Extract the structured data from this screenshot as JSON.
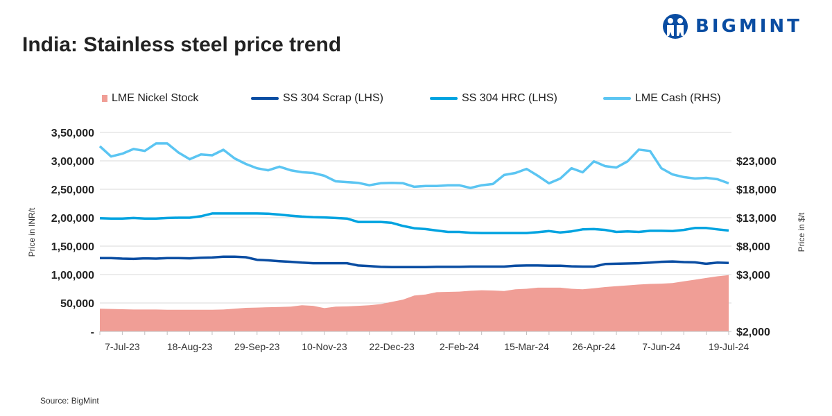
{
  "title": "India: Stainless steel price trend",
  "logo": {
    "text": "BIGMINT",
    "icon": "bigmint-people-icon"
  },
  "source": "Source: BigMint",
  "colors": {
    "nickel": "#f09e96",
    "scrap": "#0a4da2",
    "hrc": "#00a3e0",
    "cash": "#5bc5f2",
    "grid": "#d9d9d9"
  },
  "chart_data": {
    "type": "line",
    "title": "India: Stainless steel price trend",
    "ylabel": "Price in INR/t",
    "y2label": "Price in $/t",
    "ylim": [
      0,
      350000
    ],
    "y2lim": [
      -2250,
      23000
    ],
    "grid": true,
    "legend_position": "top",
    "yticks": [
      "-",
      "50,000",
      "1,00,000",
      "1,50,000",
      "2,00,000",
      "2,50,000",
      "3,00,000",
      "3,50,000"
    ],
    "y2ticks": [
      "$2,000",
      "$3,000",
      "$8,000",
      "$13,000",
      "$18,000",
      "$23,000"
    ],
    "xtick_labels": [
      "7-Jul-23",
      "18-Aug-23",
      "29-Sep-23",
      "10-Nov-23",
      "22-Dec-23",
      "2-Feb-24",
      "15-Mar-24",
      "26-Apr-24",
      "7-Jun-24",
      "19-Jul-24"
    ],
    "x": [
      "23-Jun-23",
      "30-Jun-23",
      "7-Jul-23",
      "14-Jul-23",
      "21-Jul-23",
      "28-Jul-23",
      "4-Aug-23",
      "11-Aug-23",
      "18-Aug-23",
      "25-Aug-23",
      "1-Sep-23",
      "8-Sep-23",
      "15-Sep-23",
      "22-Sep-23",
      "29-Sep-23",
      "6-Oct-23",
      "13-Oct-23",
      "20-Oct-23",
      "27-Oct-23",
      "3-Nov-23",
      "10-Nov-23",
      "17-Nov-23",
      "24-Nov-23",
      "1-Dec-23",
      "8-Dec-23",
      "15-Dec-23",
      "22-Dec-23",
      "29-Dec-23",
      "5-Jan-24",
      "12-Jan-24",
      "19-Jan-24",
      "26-Jan-24",
      "2-Feb-24",
      "9-Feb-24",
      "16-Feb-24",
      "23-Feb-24",
      "1-Mar-24",
      "8-Mar-24",
      "15-Mar-24",
      "22-Mar-24",
      "29-Mar-24",
      "5-Apr-24",
      "12-Apr-24",
      "19-Apr-24",
      "26-Apr-24",
      "3-May-24",
      "10-May-24",
      "17-May-24",
      "24-May-24",
      "31-May-24",
      "7-Jun-24",
      "14-Jun-24",
      "21-Jun-24",
      "28-Jun-24",
      "5-Jul-24",
      "12-Jul-24",
      "19-Jul-24"
    ],
    "series": [
      {
        "name": "LME Nickel Stock",
        "type": "area",
        "axis": "left",
        "values": [
          40000,
          39500,
          39000,
          38500,
          38500,
          38500,
          38000,
          38000,
          38000,
          38000,
          38000,
          38500,
          40000,
          41500,
          42000,
          42500,
          43000,
          43500,
          46000,
          45000,
          41000,
          43500,
          44000,
          45000,
          46000,
          48000,
          52000,
          56000,
          63000,
          65000,
          69000,
          69500,
          70000,
          71500,
          72500,
          72000,
          71000,
          74000,
          75000,
          77000,
          77000,
          77000,
          75000,
          74000,
          76000,
          78000,
          79500,
          81000,
          82500,
          83500,
          84000,
          85000,
          88000,
          91000,
          94000,
          97000,
          99000
        ]
      },
      {
        "name": "SS 304 Scrap (LHS)",
        "type": "line",
        "axis": "left",
        "values": [
          129000,
          129000,
          128000,
          127500,
          128500,
          128000,
          129000,
          129000,
          128500,
          129500,
          130000,
          131500,
          131500,
          130500,
          126000,
          125000,
          123500,
          122500,
          121000,
          120000,
          120000,
          120000,
          120000,
          116000,
          115000,
          113500,
          113000,
          113000,
          113000,
          113000,
          113500,
          113500,
          113500,
          114000,
          114000,
          114000,
          114000,
          115500,
          116000,
          116000,
          115500,
          115500,
          114500,
          114000,
          114000,
          118500,
          119000,
          119500,
          120000,
          121000,
          122500,
          123000,
          122000,
          121500,
          119000,
          121000,
          120500
        ]
      },
      {
        "name": "SS 304 HRC (LHS)",
        "type": "line",
        "axis": "left",
        "values": [
          199000,
          198500,
          198500,
          199500,
          198500,
          198500,
          199500,
          200000,
          200000,
          202500,
          207500,
          207500,
          207500,
          207500,
          207500,
          207000,
          205500,
          203500,
          202000,
          201000,
          200500,
          199500,
          198500,
          192500,
          192500,
          192500,
          191000,
          185500,
          181500,
          180000,
          177500,
          175000,
          175000,
          173500,
          173000,
          173000,
          173000,
          173000,
          173000,
          174500,
          176500,
          174000,
          176000,
          179500,
          180000,
          178500,
          175000,
          176000,
          175000,
          177000,
          177000,
          176500,
          178500,
          182000,
          182000,
          179500,
          177500
        ]
      },
      {
        "name": "LME Cash (RHS)",
        "type": "line",
        "axis": "right",
        "values": [
          21250,
          19950,
          20300,
          20900,
          20650,
          21600,
          21600,
          20450,
          19600,
          20200,
          20100,
          20800,
          19700,
          19000,
          18450,
          18200,
          18650,
          18200,
          17950,
          17850,
          17500,
          16800,
          16700,
          16600,
          16300,
          16550,
          16600,
          16550,
          16100,
          16200,
          16200,
          16300,
          16300,
          15950,
          16300,
          16450,
          17600,
          17850,
          18370,
          17500,
          16540,
          17150,
          18460,
          17940,
          19330,
          18720,
          18550,
          19330,
          20820,
          20640,
          18460,
          17670,
          17330,
          17150,
          17240,
          17060,
          16540
        ]
      }
    ]
  }
}
